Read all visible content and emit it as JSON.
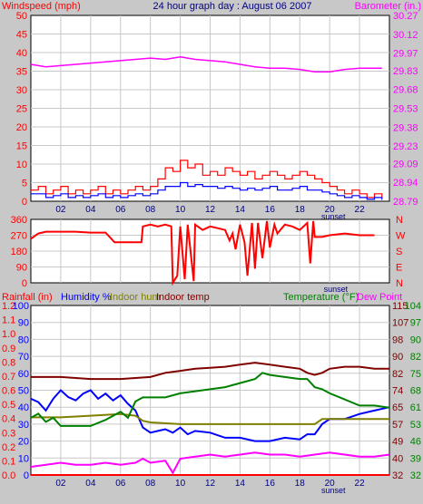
{
  "colors": {
    "background": "#c8c8c8",
    "plot_bg": "#ffffff",
    "grid": "#c8c8c8",
    "wind_speed": "#ff0000",
    "wind_avg": "#0000ff",
    "barometer": "#ff00ff",
    "direction": "#ff0000",
    "rainfall": "#ff0000",
    "humidity": "#0000ff",
    "indoor_hum": "#808000",
    "indoor_temp": "#800000",
    "temperature": "#008000",
    "dew_point": "#ff00ff",
    "title": "#000080",
    "x_axis": "#000080"
  },
  "chart_data": [
    {
      "type": "line",
      "title": "24 hour graph day : August 06 2007",
      "left_label": "Windspeed (mph)",
      "right_label": "Barometer (in.)",
      "x_ticks": [
        "02",
        "04",
        "06",
        "08",
        "10",
        "12",
        "14",
        "16",
        "18",
        "20",
        "22"
      ],
      "x_annotation": "sunset",
      "xlim": [
        0,
        24
      ],
      "ylim": [
        0,
        50
      ],
      "y_ticks": [
        0,
        5,
        10,
        15,
        20,
        25,
        30,
        35,
        40,
        45,
        50
      ],
      "y2lim": [
        28.79,
        30.27
      ],
      "y2_ticks": [
        "28.79",
        "28.94",
        "29.09",
        "29.23",
        "29.38",
        "29.53",
        "29.68",
        "29.83",
        "29.97",
        "30.12",
        "30.27"
      ],
      "series": [
        {
          "axis": "left",
          "role": "gust",
          "x": [
            0,
            0.5,
            1,
            1.5,
            2,
            2.5,
            3,
            3.5,
            4,
            4.5,
            5,
            5.5,
            6,
            6.5,
            7,
            7.5,
            8,
            8.5,
            9,
            9.5,
            10,
            10.5,
            11,
            11.5,
            12,
            12.5,
            13,
            13.5,
            14,
            14.5,
            15,
            15.5,
            16,
            16.5,
            17,
            17.5,
            18,
            18.5,
            19,
            19.5,
            20,
            20.5,
            21,
            21.5,
            22,
            22.5,
            23,
            23.5
          ],
          "values": [
            3,
            4,
            2,
            3,
            4,
            2,
            3,
            2,
            3,
            4,
            2,
            3,
            2,
            3,
            4,
            3,
            4,
            6,
            9,
            8,
            11,
            9,
            10,
            7,
            8,
            7,
            9,
            8,
            7,
            8,
            6,
            7,
            8,
            7,
            6,
            7,
            8,
            7,
            6,
            5,
            4,
            3,
            2,
            3,
            2,
            1,
            2,
            1
          ]
        },
        {
          "axis": "left",
          "role": "average",
          "x": [
            0,
            0.5,
            1,
            1.5,
            2,
            2.5,
            3,
            3.5,
            4,
            4.5,
            5,
            5.5,
            6,
            6.5,
            7,
            7.5,
            8,
            8.5,
            9,
            9.5,
            10,
            10.5,
            11,
            11.5,
            12,
            12.5,
            13,
            13.5,
            14,
            14.5,
            15,
            15.5,
            16,
            16.5,
            17,
            17.5,
            18,
            18.5,
            19,
            19.5,
            20,
            20.5,
            21,
            21.5,
            22,
            22.5,
            23,
            23.5
          ],
          "values": [
            2,
            2,
            1,
            1.5,
            2,
            1,
            1.5,
            1,
            1.5,
            2,
            1,
            1.5,
            1,
            1.5,
            2,
            1.5,
            2,
            3,
            4,
            4,
            5,
            4,
            4.5,
            4,
            4,
            3.5,
            4,
            3.5,
            3,
            3.5,
            3,
            3.5,
            4,
            3,
            3,
            3.5,
            4,
            3,
            3,
            2.5,
            2,
            1.5,
            1,
            1.5,
            1,
            0.5,
            1,
            0.5
          ]
        },
        {
          "axis": "right",
          "role": "barometer",
          "x": [
            0,
            1,
            2,
            3,
            4,
            5,
            6,
            7,
            8,
            9,
            10,
            11,
            12,
            13,
            14,
            15,
            16,
            17,
            18,
            19,
            20,
            21,
            22,
            23.5
          ],
          "values": [
            29.88,
            29.86,
            29.87,
            29.88,
            29.89,
            29.9,
            29.91,
            29.92,
            29.93,
            29.92,
            29.94,
            29.92,
            29.91,
            29.9,
            29.88,
            29.86,
            29.85,
            29.85,
            29.84,
            29.82,
            29.82,
            29.84,
            29.85,
            29.85
          ]
        }
      ]
    },
    {
      "type": "line",
      "title": "",
      "y_ticks": [
        0,
        90,
        180,
        270,
        360
      ],
      "ylim": [
        0,
        360
      ],
      "compass": [
        "N",
        "W",
        "S",
        "E",
        "N"
      ],
      "x_annotation": "sunset",
      "xlim": [
        0,
        24
      ],
      "series": [
        {
          "role": "direction",
          "x": [
            0,
            0.5,
            1,
            2,
            3,
            4,
            5,
            5.6,
            6,
            6.5,
            7,
            7.4,
            7.5,
            8,
            8.5,
            9,
            9.4,
            9.5,
            9.8,
            10,
            10.3,
            10.5,
            10.9,
            11,
            11.5,
            12,
            12.5,
            13,
            13.3,
            13.5,
            13.7,
            14,
            14.3,
            14.5,
            14.8,
            15,
            15.2,
            15.5,
            15.8,
            16,
            16.3,
            16.5,
            17,
            17.5,
            18,
            18.5,
            18.7,
            18.9,
            19,
            19.5,
            20,
            21,
            22,
            23
          ],
          "values": [
            250,
            280,
            290,
            290,
            290,
            285,
            285,
            230,
            230,
            230,
            230,
            230,
            320,
            330,
            320,
            330,
            320,
            0,
            40,
            320,
            20,
            330,
            10,
            330,
            300,
            320,
            310,
            300,
            240,
            280,
            190,
            330,
            230,
            40,
            340,
            80,
            340,
            140,
            350,
            200,
            330,
            280,
            330,
            320,
            300,
            340,
            110,
            350,
            260,
            260,
            270,
            280,
            270,
            270
          ]
        }
      ]
    },
    {
      "type": "line",
      "title": "",
      "left_labels": [
        "Rainfall (in)",
        "Humidity %",
        "Indoor hum",
        "Indoor temp"
      ],
      "right_labels": [
        "Temperature (°F)",
        "Dew Point"
      ],
      "x_ticks": [
        "02",
        "04",
        "06",
        "08",
        "10",
        "12",
        "14",
        "16",
        "18",
        "20",
        "22"
      ],
      "x_annotation": "sunset",
      "xlim": [
        0,
        24
      ],
      "rain_ticks": [
        "0.0",
        "0.1",
        "0.2",
        "0.3",
        "0.4",
        "0.5",
        "0.6",
        "0.7",
        "0.8",
        "0.9",
        "1.0",
        "1.1",
        "1.2"
      ],
      "rain_lim": [
        0,
        1.2
      ],
      "hum_ticks": [
        "0",
        "10",
        "20",
        "30",
        "40",
        "50",
        "60",
        "70",
        "80",
        "90",
        "100"
      ],
      "hum_lim": [
        0,
        100
      ],
      "temp_ticks_inner": [
        "32",
        "40",
        "49",
        "57",
        "65",
        "74",
        "82",
        "90",
        "98",
        "107",
        "115"
      ],
      "temp_ticks_outer": [
        "32",
        "39",
        "46",
        "53",
        "61",
        "68",
        "75",
        "82",
        "90",
        "97",
        "104"
      ],
      "temp_lim": [
        32,
        115
      ],
      "series": [
        {
          "name": "Rainfall (in)",
          "axis": "rain",
          "x": [
            0,
            24
          ],
          "values": [
            0,
            0
          ]
        },
        {
          "name": "Humidity %",
          "axis": "hum",
          "x": [
            0,
            0.5,
            1,
            1.5,
            2,
            2.5,
            3,
            3.5,
            4,
            4.5,
            5,
            5.5,
            6,
            6.5,
            7,
            7.5,
            8,
            8.5,
            9,
            9.5,
            10,
            10.5,
            11,
            12,
            13,
            14,
            15,
            16,
            17,
            18,
            18.5,
            19,
            19.5,
            20,
            21,
            22,
            23,
            24
          ],
          "values": [
            45,
            43,
            38,
            45,
            50,
            46,
            44,
            48,
            50,
            45,
            48,
            44,
            47,
            42,
            38,
            28,
            25,
            26,
            27,
            25,
            28,
            24,
            26,
            25,
            22,
            22,
            20,
            20,
            22,
            21,
            24,
            24,
            30,
            33,
            33,
            36,
            38,
            40
          ]
        },
        {
          "name": "Indoor hum",
          "axis": "hum",
          "x": [
            0,
            2,
            4,
            6,
            7,
            7.5,
            8,
            10,
            12,
            14,
            16,
            18,
            19,
            19.5,
            20,
            22,
            24
          ],
          "values": [
            34,
            34,
            35,
            36,
            35,
            32,
            31,
            30,
            30,
            30,
            30,
            30,
            30,
            33,
            33,
            33,
            33
          ]
        },
        {
          "name": "Indoor temp",
          "axis": "temp",
          "x": [
            0,
            1,
            2,
            3,
            4,
            5,
            6,
            7,
            8,
            9,
            10,
            11,
            12,
            13,
            14,
            15,
            16,
            17,
            18,
            18.5,
            19,
            19.5,
            20,
            21,
            22,
            23,
            24
          ],
          "values": [
            80,
            80,
            80,
            79.5,
            79,
            79,
            79,
            79.5,
            80,
            82,
            83,
            84,
            84.5,
            85,
            86,
            87,
            86,
            85,
            84,
            82,
            81,
            82,
            84,
            85,
            85,
            84,
            84
          ]
        },
        {
          "name": "Temperature (°F)",
          "axis": "temp",
          "x": [
            0,
            0.5,
            1,
            1.5,
            2,
            3,
            4,
            5,
            6,
            6.5,
            7,
            7.5,
            8,
            9,
            10,
            11,
            12,
            13,
            14,
            15,
            15.5,
            16,
            17,
            18,
            18.5,
            19,
            19.5,
            20,
            21,
            22,
            23,
            24
          ],
          "values": [
            60,
            62,
            58,
            60,
            56,
            56,
            56,
            59,
            63,
            60,
            68,
            70,
            70,
            70,
            72,
            73,
            74,
            75,
            77,
            79,
            82,
            81,
            80,
            79,
            79,
            75,
            74,
            72,
            69,
            66,
            66,
            65
          ]
        },
        {
          "name": "Dew Point",
          "axis": "temp",
          "x": [
            0,
            1,
            2,
            3,
            4,
            5,
            6,
            7,
            7.5,
            8,
            9,
            9.5,
            10,
            11,
            12,
            13,
            14,
            15,
            16,
            17,
            18,
            19,
            20,
            21,
            22,
            23,
            24
          ],
          "values": [
            36,
            37,
            38,
            37,
            37,
            38,
            37,
            38,
            40,
            38,
            39,
            33,
            40,
            41,
            42,
            41,
            42,
            43,
            42,
            42,
            41,
            42,
            43,
            42,
            41,
            41,
            42
          ]
        }
      ]
    }
  ]
}
